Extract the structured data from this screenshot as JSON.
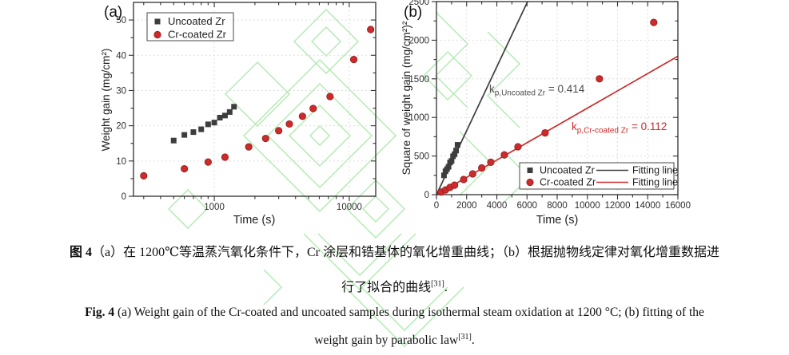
{
  "colors": {
    "marker_black": "#3d3d3d",
    "marker_red": "#cd2b2b",
    "fit_black": "#3d3d3d",
    "fit_red": "#cc2a2a",
    "watermark_green": "#a9e7a9",
    "grid": "#dedede",
    "axis": "#2f2f2f",
    "annotation_gray": "#4d4d4d"
  },
  "chart_data": [
    {
      "id": "a",
      "type": "scatter",
      "panel_label": "(a)",
      "xlabel": "Time (s)",
      "ylabel": "Weight gain (mg/cm²)",
      "x_scale": "log",
      "x_domain": [
        252,
        15700
      ],
      "x_major_ticks": [
        1000,
        10000
      ],
      "x_minor_ticks": [
        300,
        400,
        500,
        600,
        700,
        800,
        900,
        2000,
        3000,
        4000,
        5000,
        6000,
        7000,
        8000,
        9000
      ],
      "y_domain": [
        0,
        55
      ],
      "y_major_ticks": [
        0,
        10,
        20,
        30,
        40,
        50
      ],
      "y_minor_step": 5,
      "grid": true,
      "legend_position": "top-left",
      "series": [
        {
          "name": "Uncoated Zr",
          "marker": "square",
          "color": "#3d3d3d",
          "points": [
            [
              500,
              15.8
            ],
            [
              600,
              17.4
            ],
            [
              700,
              18.2
            ],
            [
              800,
              19.0
            ],
            [
              900,
              20.4
            ],
            [
              1000,
              20.9
            ],
            [
              1100,
              22.3
            ],
            [
              1200,
              22.9
            ],
            [
              1300,
              23.9
            ],
            [
              1400,
              25.4
            ]
          ]
        },
        {
          "name": "Cr-coated Zr",
          "marker": "circle",
          "color": "#cd2b2b",
          "points": [
            [
              300,
              5.8
            ],
            [
              600,
              7.8
            ],
            [
              900,
              9.7
            ],
            [
              1200,
              11.1
            ],
            [
              1800,
              14.0
            ],
            [
              2400,
              16.4
            ],
            [
              3000,
              18.6
            ],
            [
              3600,
              20.5
            ],
            [
              4500,
              22.7
            ],
            [
              5400,
              24.9
            ],
            [
              7200,
              28.3
            ],
            [
              10800,
              38.8
            ],
            [
              14400,
              47.3
            ]
          ]
        }
      ]
    },
    {
      "id": "b",
      "type": "scatter",
      "panel_label": "(b)",
      "xlabel": "Time (s)",
      "ylabel": "Square of weight gain (mg/cm²)²",
      "x_scale": "linear",
      "x_domain": [
        0,
        16000
      ],
      "x_major_step": 2000,
      "x_minor_step": 1000,
      "y_domain": [
        0,
        2500
      ],
      "y_major_step": 500,
      "y_minor_step": 250,
      "grid": true,
      "legend_position": "bottom-right",
      "series": [
        {
          "name": "Uncoated Zr",
          "marker": "square",
          "color": "#3d3d3d",
          "points": [
            [
              500,
              250
            ],
            [
              600,
              303
            ],
            [
              700,
              331
            ],
            [
              800,
              361
            ],
            [
              900,
              416
            ],
            [
              1000,
              437
            ],
            [
              1100,
              497
            ],
            [
              1200,
              524
            ],
            [
              1300,
              571
            ],
            [
              1400,
              645
            ]
          ]
        },
        {
          "name": "Cr-coated Zr",
          "marker": "circle",
          "color": "#cd2b2b",
          "points": [
            [
              300,
              34
            ],
            [
              600,
              61
            ],
            [
              900,
              94
            ],
            [
              1200,
              123
            ],
            [
              1800,
              196
            ],
            [
              2400,
              269
            ],
            [
              3000,
              346
            ],
            [
              3600,
              420
            ],
            [
              4500,
              515
            ],
            [
              5400,
              620
            ],
            [
              7200,
              800
            ],
            [
              10800,
              1500
            ],
            [
              14400,
              2230
            ]
          ]
        }
      ],
      "fit_lines": [
        {
          "name": "Fitting line",
          "color": "#3d3d3d",
          "slope": 0.414
        },
        {
          "name": "Fitting line",
          "color": "#cc2a2a",
          "slope": 0.112
        }
      ],
      "annotations": [
        {
          "k": "k",
          "sub": "p,Uncoated Zr",
          "rest": " = 0.414",
          "color": "#4d4d4d"
        },
        {
          "k": "k",
          "sub": "p,Cr-coated Zr",
          "rest": " = 0.112",
          "color": "#cc2a2a"
        }
      ]
    }
  ],
  "captions": {
    "chinese_line1_bold": "图 4",
    "chinese_line1_rest": "（a）在 1200℃等温蒸汽氧化条件下，Cr 涂层和锆基体的氧化增重曲线；（b）根据抛物线定律对氧化增重数据进",
    "chinese_line2_text": "行了拟合的曲线",
    "chinese_line2_sup": "[31]",
    "chinese_line2_end": ".",
    "english_line1_bold": "Fig. 4",
    "english_line1_rest": " (a) Weight gain of the Cr-coated and uncoated samples during isothermal steam oxidation at 1200 °C; (b) fitting of the",
    "english_line2_text": "weight gain by parabolic law",
    "english_line2_sup": "[31]",
    "english_line2_end": "."
  }
}
